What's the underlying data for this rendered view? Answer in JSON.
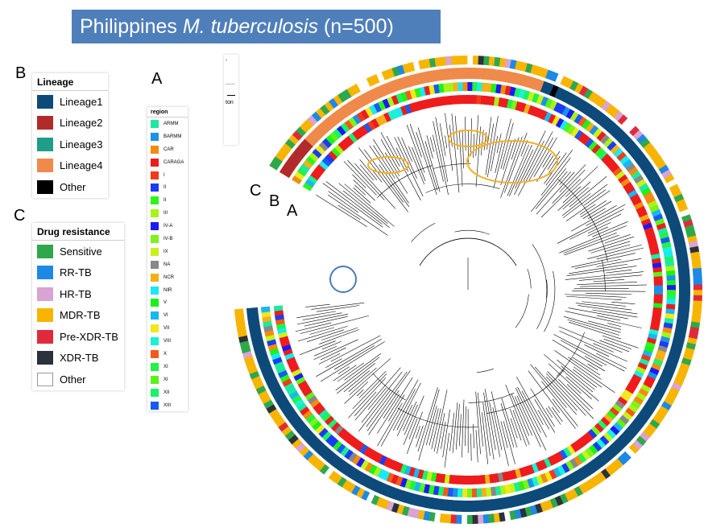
{
  "title": {
    "prefix": "Philippines ",
    "species": "M. tuberculosis",
    "suffix": " (n=500)"
  },
  "panel_letters": {
    "legend_b": "B",
    "legend_c": "C",
    "legend_a": "A",
    "ring_c": "C",
    "ring_b": "B",
    "ring_a": "A"
  },
  "lineage_legend": {
    "title": "Lineage",
    "items": [
      {
        "label": "Lineage1",
        "color": "#0d4a7a"
      },
      {
        "label": "Lineage2",
        "color": "#b22a2a"
      },
      {
        "label": "Lineage3",
        "color": "#1f9e8a"
      },
      {
        "label": "Lineage4",
        "color": "#f08a4b"
      },
      {
        "label": "Other",
        "color": "#000000"
      }
    ]
  },
  "drug_legend": {
    "title": "Drug resistance",
    "items": [
      {
        "label": "Sensitive",
        "color": "#2ea84a"
      },
      {
        "label": "RR-TB",
        "color": "#1e88e5"
      },
      {
        "label": "HR-TB",
        "color": "#d9a3d2"
      },
      {
        "label": "MDR-TB",
        "color": "#f7b500"
      },
      {
        "label": "Pre-XDR-TB",
        "color": "#e02a3c"
      },
      {
        "label": "XDR-TB",
        "color": "#2b323b"
      },
      {
        "label": "Other",
        "color": "#ffffff"
      }
    ]
  },
  "region_legend": {
    "title": "region",
    "items": [
      {
        "label": "ARMM",
        "color": "#1de9a0"
      },
      {
        "label": "BARMM",
        "color": "#1e90e6"
      },
      {
        "label": "CAR",
        "color": "#f28c0f"
      },
      {
        "label": "CARAGA",
        "color": "#ee1c1c"
      },
      {
        "label": "I",
        "color": "#f23a1a"
      },
      {
        "label": "II",
        "color": "#1a3cf2"
      },
      {
        "label": "II",
        "color": "#2ef21a"
      },
      {
        "label": "III",
        "color": "#a8f21a"
      },
      {
        "label": "IV-A",
        "color": "#1a1af2"
      },
      {
        "label": "IV-B",
        "color": "#7ef21a"
      },
      {
        "label": "IX",
        "color": "#c8f21a"
      },
      {
        "label": "NA",
        "color": "#888888"
      },
      {
        "label": "NCR",
        "color": "#f2b01a"
      },
      {
        "label": "NIR",
        "color": "#1ae8f2"
      },
      {
        "label": "V",
        "color": "#1af21a"
      },
      {
        "label": "VI",
        "color": "#1ab6f2"
      },
      {
        "label": "VII",
        "color": "#f2e81a"
      },
      {
        "label": "VIII",
        "color": "#1af2d6"
      },
      {
        "label": "X",
        "color": "#f25a1a"
      },
      {
        "label": "XI",
        "color": "#22f244"
      },
      {
        "label": "XI",
        "color": "#5af21a"
      },
      {
        "label": "XII",
        "color": "#1af26a"
      },
      {
        "label": "XIII",
        "color": "#1a5af2"
      }
    ]
  },
  "mini_box": {
    "label": "ton"
  },
  "highlight_colors": {
    "cluster_outline": "#f5b021",
    "blue_cluster_outline": "#4a7ab8"
  }
}
